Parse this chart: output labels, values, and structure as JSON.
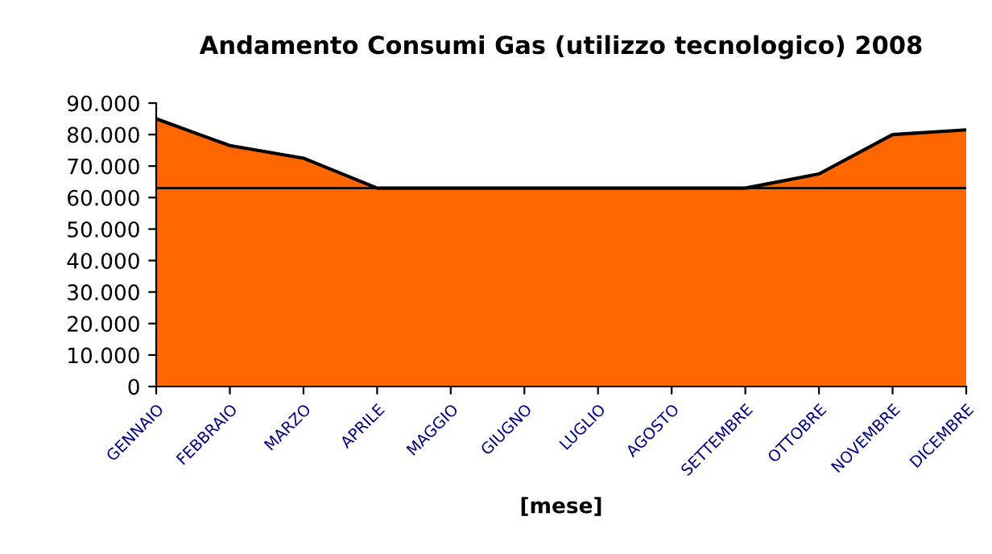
{
  "chart_data": {
    "type": "area",
    "title": "Andamento Consumi Gas (utilizzo tecnologico) 2008",
    "xlabel": "[mese]",
    "categories": [
      "GENNAIO",
      "FEBBRAIO",
      "MARZO",
      "APRILE",
      "MAGGIO",
      "GIUGNO",
      "LUGLIO",
      "AGOSTO",
      "SETTEMBRE",
      "OTTOBRE",
      "NOVEMBRE",
      "DICEMBRE"
    ],
    "series": [
      {
        "color": "#ff6600",
        "values": [
          85000,
          76500,
          72500,
          63000,
          63000,
          63000,
          63000,
          63000,
          63000,
          67500,
          80000,
          81500
        ]
      }
    ],
    "ylim": [
      0,
      90000
    ],
    "yticks": [
      {
        "value": 0,
        "label": "0"
      },
      {
        "value": 10000,
        "label": "10.000"
      },
      {
        "value": 20000,
        "label": "20.000"
      },
      {
        "value": 30000,
        "label": "30.000"
      },
      {
        "value": 40000,
        "label": "40.000"
      },
      {
        "value": 50000,
        "label": "50.000"
      },
      {
        "value": 60000,
        "label": "60.000"
      },
      {
        "value": 70000,
        "label": "70.000"
      },
      {
        "value": 80000,
        "label": "80.000"
      },
      {
        "value": 90000,
        "label": "90.000"
      }
    ],
    "ref_lines": [
      {
        "axis": "y",
        "value": 63000,
        "color": "#000000"
      }
    ],
    "grid": false,
    "legend": false
  }
}
